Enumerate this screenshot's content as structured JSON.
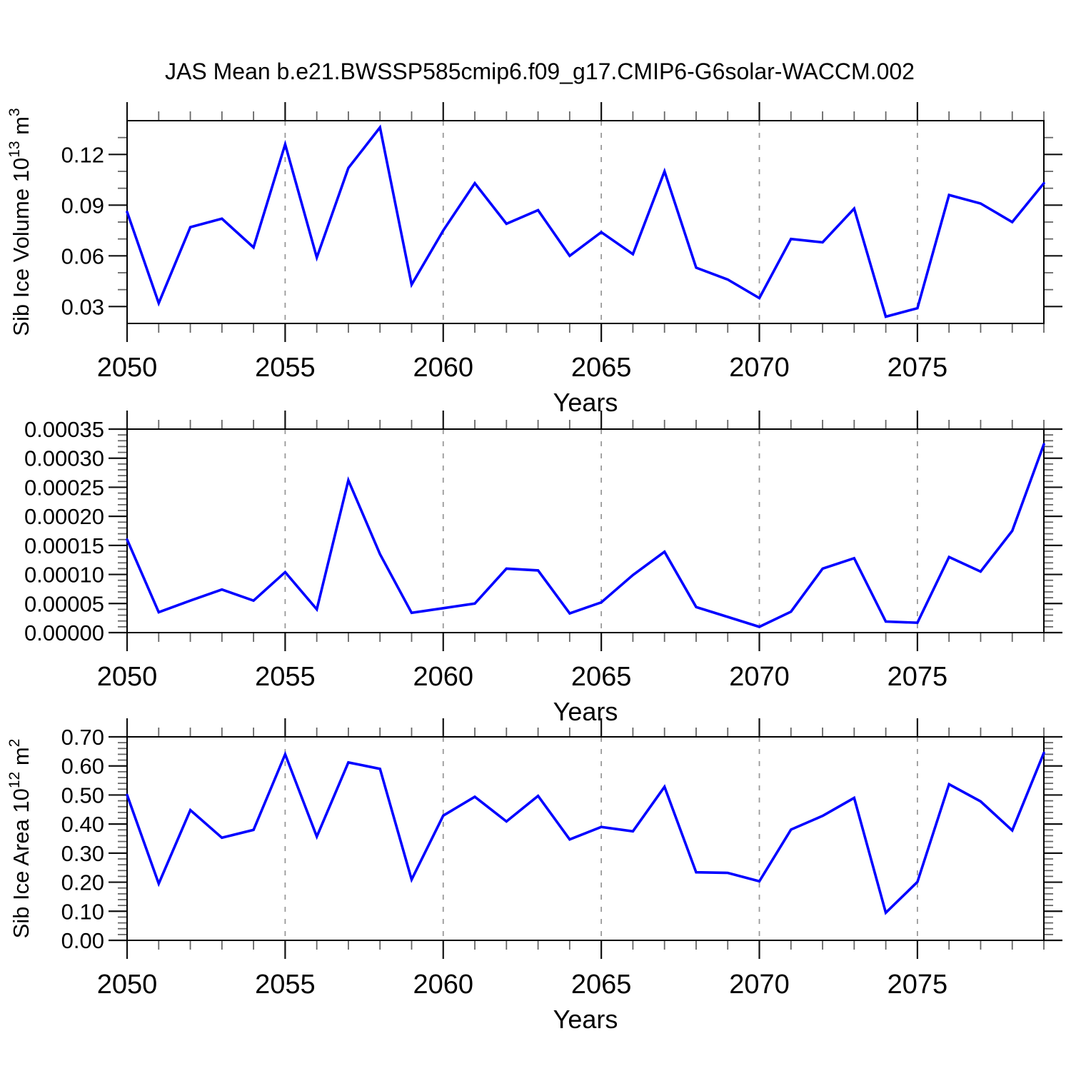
{
  "page": {
    "title": "JAS Mean b.e21.BWSSP585cmip6.f09_g17.CMIP6-G6solar-WACCM.002",
    "background": "#ffffff"
  },
  "colors": {
    "line": "#0000ff",
    "frame": "#000000",
    "tick_major": "#111111",
    "tick_minor": "#666666",
    "grid": "#999999",
    "text": "#000000"
  },
  "chart_data": [
    {
      "id": "sib-ice-volume",
      "type": "line",
      "ylabel": "Sib Ice Volume 10^13 m^3",
      "ylabel_parts": [
        {
          "t": "Sib Ice Volume 10"
        },
        {
          "t": "13",
          "sup": true
        },
        {
          "t": " m"
        },
        {
          "t": "3",
          "sup": true
        }
      ],
      "xlabel": "Years",
      "ylim": [
        0.02,
        0.14
      ],
      "ytick_major": [
        0.03,
        0.06,
        0.09,
        0.12
      ],
      "ytick_minor_step": 0.01,
      "ytick_decimals": 2,
      "xticks_labeled": [
        2050,
        2055,
        2060,
        2065,
        2070,
        2075
      ],
      "grid_years": [
        2055,
        2060,
        2065,
        2070,
        2075
      ],
      "grid_style": "dashed",
      "x": [
        2050,
        2051,
        2052,
        2053,
        2054,
        2055,
        2056,
        2057,
        2058,
        2059,
        2060,
        2061,
        2062,
        2063,
        2064,
        2065,
        2066,
        2067,
        2068,
        2069,
        2070,
        2071,
        2072,
        2073,
        2074,
        2075,
        2076,
        2077,
        2078,
        2079
      ],
      "values": [
        0.086,
        0.032,
        0.077,
        0.082,
        0.065,
        0.126,
        0.059,
        0.112,
        0.136,
        0.043,
        0.075,
        0.103,
        0.079,
        0.087,
        0.06,
        0.074,
        0.061,
        0.11,
        0.053,
        0.046,
        0.035,
        0.07,
        0.068,
        0.088,
        0.024,
        0.029,
        0.096,
        0.091,
        0.08,
        0.103
      ]
    },
    {
      "id": "sib-ice-middle",
      "type": "line",
      "ylabel": "",
      "ylabel_parts": [],
      "xlabel": "Years",
      "ylim": [
        0.0,
        0.00035
      ],
      "ytick_major": [
        0.0,
        5e-05,
        0.0001,
        0.00015,
        0.0002,
        0.00025,
        0.0003,
        0.00035
      ],
      "ytick_minor_step": 1e-05,
      "ytick_decimals": 5,
      "xticks_labeled": [
        2050,
        2055,
        2060,
        2065,
        2070,
        2075
      ],
      "grid_years": [
        2055,
        2060,
        2065,
        2070,
        2075
      ],
      "grid_style": "dashed",
      "x": [
        2050,
        2051,
        2052,
        2053,
        2054,
        2055,
        2056,
        2057,
        2058,
        2059,
        2060,
        2061,
        2062,
        2063,
        2064,
        2065,
        2066,
        2067,
        2068,
        2069,
        2070,
        2071,
        2072,
        2073,
        2074,
        2075,
        2076,
        2077,
        2078,
        2079
      ],
      "values": [
        0.00016,
        3.5e-05,
        5.5e-05,
        7.4e-05,
        5.5e-05,
        0.000104,
        4e-05,
        0.000262,
        0.000135,
        3.4e-05,
        4.2e-05,
        5e-05,
        0.00011,
        0.000107,
        3.3e-05,
        5.2e-05,
        9.9e-05,
        0.000139,
        4.4e-05,
        2.7e-05,
        1e-05,
        3.6e-05,
        0.00011,
        0.000128,
        1.9e-05,
        1.7e-05,
        0.00013,
        0.000105,
        0.000175,
        0.000324
      ]
    },
    {
      "id": "sib-ice-area",
      "type": "line",
      "ylabel": "Sib Ice Area 10^12 m^2",
      "ylabel_parts": [
        {
          "t": "Sib Ice Area 10"
        },
        {
          "t": "12",
          "sup": true
        },
        {
          "t": " m"
        },
        {
          "t": "2",
          "sup": true
        }
      ],
      "xlabel": "Years",
      "ylim": [
        0.0,
        0.7
      ],
      "ytick_major": [
        0.0,
        0.1,
        0.2,
        0.3,
        0.4,
        0.5,
        0.6,
        0.7
      ],
      "ytick_minor_step": 0.02,
      "ytick_decimals": 2,
      "xticks_labeled": [
        2050,
        2055,
        2060,
        2065,
        2070,
        2075
      ],
      "grid_years": [
        2055,
        2060,
        2065,
        2070,
        2075
      ],
      "grid_style": "dashed",
      "x": [
        2050,
        2051,
        2052,
        2053,
        2054,
        2055,
        2056,
        2057,
        2058,
        2059,
        2060,
        2061,
        2062,
        2063,
        2064,
        2065,
        2066,
        2067,
        2068,
        2069,
        2070,
        2071,
        2072,
        2073,
        2074,
        2075,
        2076,
        2077,
        2078,
        2079
      ],
      "values": [
        0.5,
        0.195,
        0.448,
        0.353,
        0.38,
        0.64,
        0.357,
        0.612,
        0.59,
        0.209,
        0.429,
        0.494,
        0.409,
        0.497,
        0.347,
        0.39,
        0.375,
        0.528,
        0.234,
        0.232,
        0.203,
        0.381,
        0.428,
        0.49,
        0.095,
        0.201,
        0.537,
        0.478,
        0.378,
        0.645
      ]
    }
  ]
}
